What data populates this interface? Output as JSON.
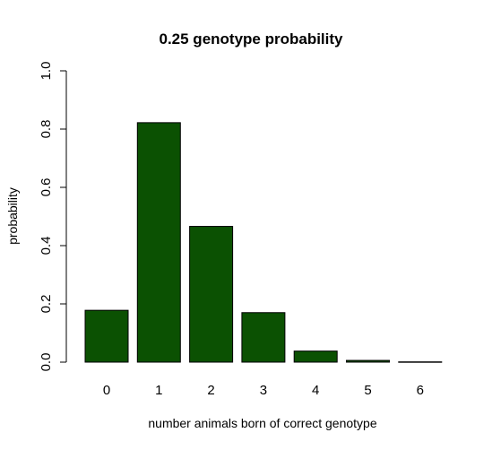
{
  "chart_data": {
    "type": "bar",
    "title": "0.25 genotype probability",
    "xlabel": "number animals born of correct genotype",
    "ylabel": "probability",
    "categories": [
      "0",
      "1",
      "2",
      "3",
      "4",
      "5",
      "6"
    ],
    "values": [
      0.178,
      0.822,
      0.466,
      0.17,
      0.038,
      0.006,
      0.001
    ],
    "ylim": [
      0,
      1
    ],
    "yticks": [
      "0.0",
      "0.2",
      "0.4",
      "0.6",
      "0.8",
      "1.0"
    ],
    "bar_color": "#0b5102",
    "grid": false,
    "legend": "none"
  }
}
